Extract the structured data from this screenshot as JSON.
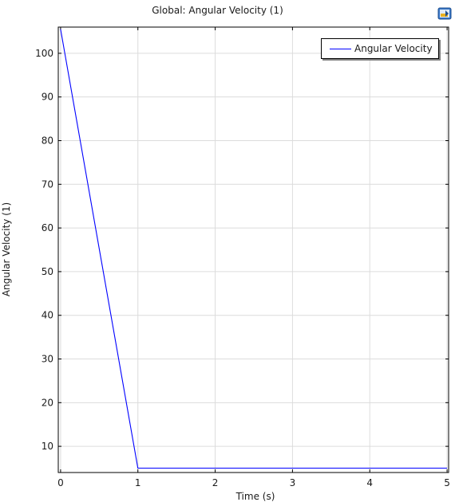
{
  "title": "Global: Angular Velocity (1)",
  "export_icon": "export-image-icon",
  "chart_data": {
    "type": "line",
    "title": "Global: Angular Velocity (1)",
    "xlabel": "Time (s)",
    "ylabel": "Angular Velocity (1)",
    "xlim": [
      -0.03,
      5.02
    ],
    "ylim": [
      4.0,
      106.0
    ],
    "xticks": [
      0,
      1,
      2,
      3,
      4,
      5
    ],
    "yticks": [
      10,
      20,
      30,
      40,
      50,
      60,
      70,
      80,
      90,
      100
    ],
    "grid": true,
    "legend_position": "top-right",
    "series": [
      {
        "name": "Angular Velocity",
        "color": "#0000ff",
        "x": [
          0,
          1,
          2,
          3,
          4,
          5
        ],
        "y": [
          105.5,
          5,
          5,
          5,
          5,
          5
        ]
      }
    ]
  }
}
